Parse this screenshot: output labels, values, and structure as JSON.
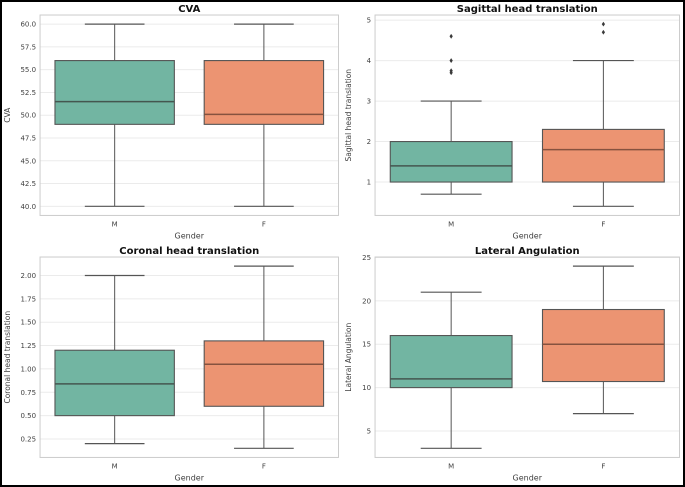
{
  "figure": {
    "background": "#ffffff",
    "border_color": "#000000"
  },
  "palette": {
    "grid": "#ebebeb",
    "frame": "#cccccc",
    "tick_text": "#3f3f3f",
    "label_text": "#3f3f3f",
    "title_text": "#111111",
    "outlier": "#3a3a3a",
    "male_fill": "#72b5a2",
    "female_fill": "#ec9472"
  },
  "chart_data": [
    {
      "type": "box",
      "title": "CVA",
      "xlabel": "Gender",
      "ylabel": "CVA",
      "categories": [
        "M",
        "F"
      ],
      "ylim": [
        39.0,
        61.0
      ],
      "grid": true,
      "legend": "none",
      "ytick_values": [
        40.0,
        42.5,
        45.0,
        47.5,
        50.0,
        52.5,
        55.0,
        57.5,
        60.0
      ],
      "ytick_labels": [
        "40.0",
        "42.5",
        "45.0",
        "47.5",
        "50.0",
        "52.5",
        "55.0",
        "57.5",
        "60.0"
      ],
      "series": [
        {
          "name": "M",
          "fill": "#72b5a2",
          "line_color": "#555555",
          "median_color": "#44564f",
          "whisker_low": 40.0,
          "q1": 49.0,
          "median": 51.5,
          "q3": 56.0,
          "whisker_high": 60.0,
          "outliers": []
        },
        {
          "name": "F",
          "fill": "#ec9472",
          "line_color": "#555555",
          "median_color": "#86523f",
          "whisker_low": 40.0,
          "q1": 49.0,
          "median": 50.1,
          "q3": 56.0,
          "whisker_high": 60.0,
          "outliers": []
        }
      ]
    },
    {
      "type": "box",
      "title": "Sagittal head translation",
      "xlabel": "Gender",
      "ylabel": "Sagittal head translation",
      "categories": [
        "M",
        "F"
      ],
      "ylim": [
        0.175,
        5.125
      ],
      "grid": true,
      "legend": "none",
      "ytick_values": [
        1,
        2,
        3,
        4,
        5
      ],
      "ytick_labels": [
        "1",
        "2",
        "3",
        "4",
        "5"
      ],
      "series": [
        {
          "name": "M",
          "fill": "#72b5a2",
          "line_color": "#555555",
          "median_color": "#44564f",
          "whisker_low": 0.7,
          "q1": 1.0,
          "median": 1.4,
          "q3": 2.0,
          "whisker_high": 3.0,
          "outliers": [
            3.7,
            3.75,
            4.0,
            4.6
          ]
        },
        {
          "name": "F",
          "fill": "#ec9472",
          "line_color": "#555555",
          "median_color": "#86523f",
          "whisker_low": 0.4,
          "q1": 1.0,
          "median": 1.8,
          "q3": 2.3,
          "whisker_high": 4.0,
          "outliers": [
            4.7,
            4.9
          ]
        }
      ]
    },
    {
      "type": "box",
      "title": "Coronal head translation",
      "xlabel": "Gender",
      "ylabel": "Coronal head translation",
      "categories": [
        "M",
        "F"
      ],
      "ylim": [
        0.0525,
        2.1975
      ],
      "grid": true,
      "legend": "none",
      "ytick_values": [
        0.25,
        0.5,
        0.75,
        1.0,
        1.25,
        1.5,
        1.75,
        2.0
      ],
      "ytick_labels": [
        "0.25",
        "0.50",
        "0.75",
        "1.00",
        "1.25",
        "1.50",
        "1.75",
        "2.00"
      ],
      "series": [
        {
          "name": "M",
          "fill": "#72b5a2",
          "line_color": "#555555",
          "median_color": "#44564f",
          "whisker_low": 0.2,
          "q1": 0.5,
          "median": 0.84,
          "q3": 1.2,
          "whisker_high": 2.0,
          "outliers": []
        },
        {
          "name": "F",
          "fill": "#ec9472",
          "line_color": "#555555",
          "median_color": "#86523f",
          "whisker_low": 0.15,
          "q1": 0.6,
          "median": 1.05,
          "q3": 1.3,
          "whisker_high": 2.1,
          "outliers": []
        }
      ]
    },
    {
      "type": "box",
      "title": "Lateral Angulation",
      "xlabel": "Gender",
      "ylabel": "Lateral Angulation",
      "categories": [
        "M",
        "F"
      ],
      "ylim": [
        1.95,
        25.05
      ],
      "grid": true,
      "legend": "none",
      "ytick_values": [
        5,
        10,
        15,
        20,
        25
      ],
      "ytick_labels": [
        "5",
        "10",
        "15",
        "20",
        "25"
      ],
      "series": [
        {
          "name": "M",
          "fill": "#72b5a2",
          "line_color": "#555555",
          "median_color": "#44564f",
          "whisker_low": 3.0,
          "q1": 10.0,
          "median": 11.0,
          "q3": 16.0,
          "whisker_high": 21.0,
          "outliers": []
        },
        {
          "name": "F",
          "fill": "#ec9472",
          "line_color": "#555555",
          "median_color": "#86523f",
          "whisker_low": 7.0,
          "q1": 10.7,
          "median": 15.0,
          "q3": 19.0,
          "whisker_high": 24.0,
          "outliers": []
        }
      ]
    }
  ]
}
